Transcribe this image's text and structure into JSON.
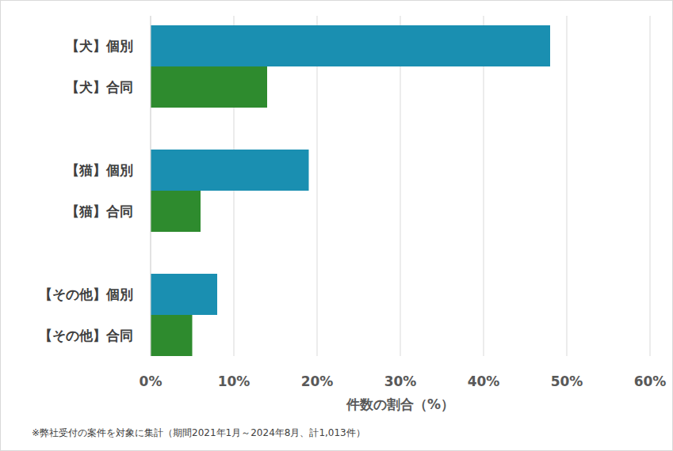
{
  "chart_data": {
    "type": "bar",
    "orientation": "horizontal",
    "categories": [
      "【犬】個別",
      "【犬】合同",
      "【猫】個別",
      "【猫】合同",
      "【その他】個別",
      "【その他】合同"
    ],
    "values": [
      48,
      14,
      19,
      6,
      8,
      5
    ],
    "colors": [
      "#1a8fb1",
      "#2e8b2e",
      "#1a8fb1",
      "#2e8b2e",
      "#1a8fb1",
      "#2e8b2e"
    ],
    "xlabel": "件数の割合（%）",
    "xlim": [
      0,
      60
    ],
    "xticks": [
      {
        "value": 0,
        "label": "0%"
      },
      {
        "value": 10,
        "label": "10%"
      },
      {
        "value": 20,
        "label": "20%"
      },
      {
        "value": 30,
        "label": "30%"
      },
      {
        "value": 40,
        "label": "40%"
      },
      {
        "value": 50,
        "label": "50%"
      },
      {
        "value": 60,
        "label": "60%"
      }
    ],
    "grid": true,
    "annotation": "※弊社受付の案件を対象に集計（期間2021年1月～2024年8月、計1,013件）"
  }
}
